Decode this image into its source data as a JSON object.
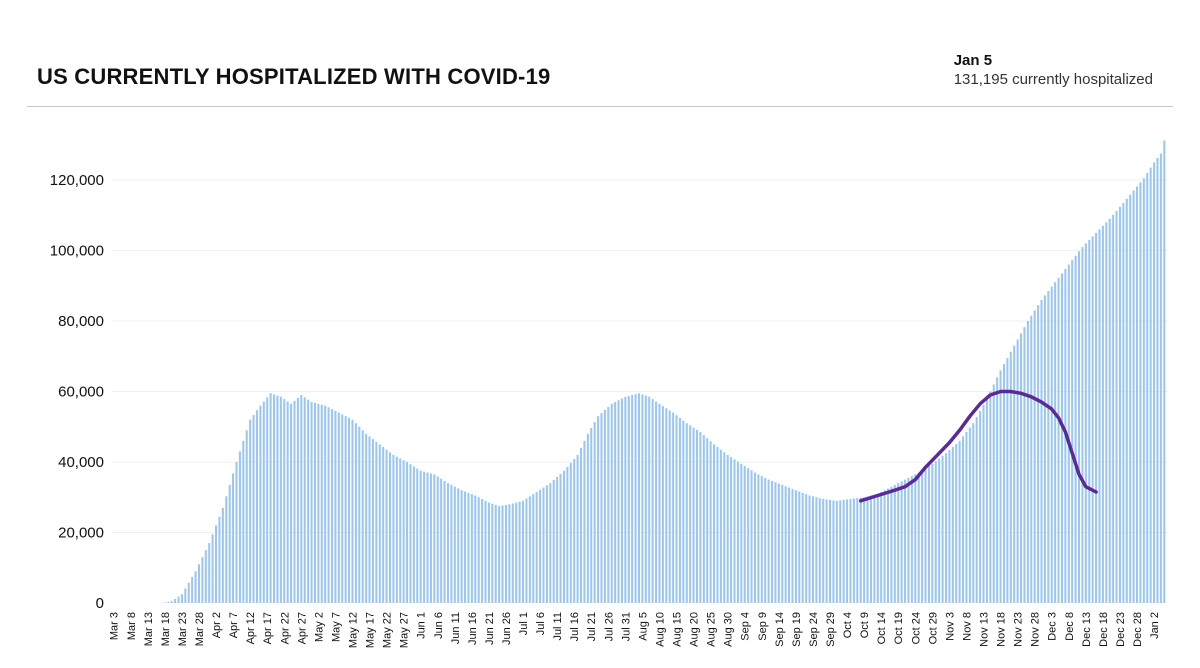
{
  "header": {
    "title": "US CURRENTLY HOSPITALIZED WITH COVID-19",
    "latest_date": "Jan 5",
    "latest_value": "131,195 currently hospitalized"
  },
  "colors": {
    "bar": "#9cc6ee",
    "trend": "#5b2a94",
    "rule": "#c8c8c8"
  },
  "chart_data": {
    "type": "bar",
    "title": "US CURRENTLY HOSPITALIZED WITH COVID-19",
    "xlabel": "",
    "ylabel": "",
    "ylim": [
      0,
      131195
    ],
    "y_ticks": [
      0,
      20000,
      40000,
      60000,
      80000,
      100000,
      120000
    ],
    "y_tick_labels": [
      "0",
      "20,000",
      "40,000",
      "60,000",
      "80,000",
      "100,000",
      "120,000"
    ],
    "start_date": "Mar 3",
    "end_date": "Jan 5",
    "day_count": 309,
    "x_tick_labels": [
      "Mar 3",
      "Mar 8",
      "Mar 13",
      "Mar 18",
      "Mar 23",
      "Mar 28",
      "Apr 2",
      "Apr 7",
      "Apr 12",
      "Apr 17",
      "Apr 22",
      "Apr 27",
      "May 2",
      "May 7",
      "May 12",
      "May 17",
      "May 22",
      "May 27",
      "Jun 1",
      "Jun 6",
      "Jun 11",
      "Jun 16",
      "Jun 21",
      "Jun 26",
      "Jul 1",
      "Jul 6",
      "Jul 11",
      "Jul 16",
      "Jul 21",
      "Jul 26",
      "Jul 31",
      "Aug 5",
      "Aug 10",
      "Aug 15",
      "Aug 20",
      "Aug 25",
      "Aug 30",
      "Sep 4",
      "Sep 9",
      "Sep 14",
      "Sep 19",
      "Sep 24",
      "Sep 29",
      "Oct 4",
      "Oct 9",
      "Oct 14",
      "Oct 19",
      "Oct 24",
      "Oct 29",
      "Nov 3",
      "Nov 8",
      "Nov 13",
      "Nov 18",
      "Nov 23",
      "Nov 28",
      "Dec 3",
      "Dec 8",
      "Dec 13",
      "Dec 18",
      "Dec 23",
      "Dec 28",
      "Jan 2"
    ],
    "series": [
      {
        "name": "Currently hospitalized (daily)",
        "type": "bar",
        "anchors": [
          [
            0,
            0
          ],
          [
            14,
            0
          ],
          [
            17,
            500
          ],
          [
            20,
            2500
          ],
          [
            24,
            9000
          ],
          [
            28,
            17000
          ],
          [
            32,
            27000
          ],
          [
            36,
            40000
          ],
          [
            40,
            52000
          ],
          [
            43,
            56000
          ],
          [
            46,
            59500
          ],
          [
            49,
            58500
          ],
          [
            52,
            56500
          ],
          [
            55,
            59000
          ],
          [
            58,
            57000
          ],
          [
            62,
            56000
          ],
          [
            66,
            54000
          ],
          [
            70,
            52000
          ],
          [
            74,
            48000
          ],
          [
            78,
            45000
          ],
          [
            82,
            42000
          ],
          [
            86,
            40000
          ],
          [
            90,
            37500
          ],
          [
            94,
            36500
          ],
          [
            98,
            34000
          ],
          [
            102,
            32000
          ],
          [
            106,
            30500
          ],
          [
            110,
            28500
          ],
          [
            113,
            27500
          ],
          [
            116,
            28000
          ],
          [
            120,
            29000
          ],
          [
            124,
            31500
          ],
          [
            128,
            34000
          ],
          [
            132,
            37500
          ],
          [
            136,
            42000
          ],
          [
            139,
            48000
          ],
          [
            142,
            53000
          ],
          [
            146,
            56500
          ],
          [
            150,
            58500
          ],
          [
            154,
            59500
          ],
          [
            157,
            58500
          ],
          [
            160,
            56500
          ],
          [
            164,
            54000
          ],
          [
            168,
            51000
          ],
          [
            172,
            48500
          ],
          [
            176,
            45000
          ],
          [
            180,
            42000
          ],
          [
            184,
            39500
          ],
          [
            188,
            37000
          ],
          [
            192,
            35000
          ],
          [
            196,
            33500
          ],
          [
            200,
            32000
          ],
          [
            204,
            30500
          ],
          [
            208,
            29500
          ],
          [
            212,
            29000
          ],
          [
            216,
            29500
          ],
          [
            220,
            30000
          ],
          [
            224,
            31000
          ],
          [
            228,
            33000
          ],
          [
            232,
            35000
          ],
          [
            236,
            37000
          ],
          [
            240,
            39500
          ],
          [
            244,
            42500
          ],
          [
            248,
            46000
          ],
          [
            252,
            51000
          ],
          [
            256,
            58000
          ],
          [
            260,
            66000
          ],
          [
            264,
            73000
          ],
          [
            268,
            80000
          ],
          [
            272,
            86000
          ],
          [
            276,
            91000
          ],
          [
            280,
            96000
          ],
          [
            284,
            101000
          ],
          [
            288,
            105000
          ],
          [
            292,
            109000
          ],
          [
            296,
            113500
          ],
          [
            299,
            117000
          ],
          [
            302,
            120500
          ],
          [
            305,
            125000
          ],
          [
            307,
            127500
          ],
          [
            308,
            131195
          ]
        ]
      },
      {
        "name": "Trend line",
        "type": "line",
        "points": [
          [
            219,
            29000
          ],
          [
            224,
            30500
          ],
          [
            229,
            32000
          ],
          [
            232,
            33000
          ],
          [
            235,
            35000
          ],
          [
            238,
            38500
          ],
          [
            242,
            42500
          ],
          [
            245,
            45500
          ],
          [
            248,
            49000
          ],
          [
            251,
            53000
          ],
          [
            254,
            56500
          ],
          [
            257,
            59000
          ],
          [
            260,
            60000
          ],
          [
            263,
            60000
          ],
          [
            266,
            59500
          ],
          [
            269,
            58500
          ],
          [
            272,
            57000
          ],
          [
            275,
            55000
          ],
          [
            277,
            52500
          ],
          [
            279,
            48500
          ],
          [
            281,
            42500
          ],
          [
            283,
            36500
          ],
          [
            285,
            33000
          ],
          [
            288,
            31500
          ]
        ]
      }
    ]
  }
}
